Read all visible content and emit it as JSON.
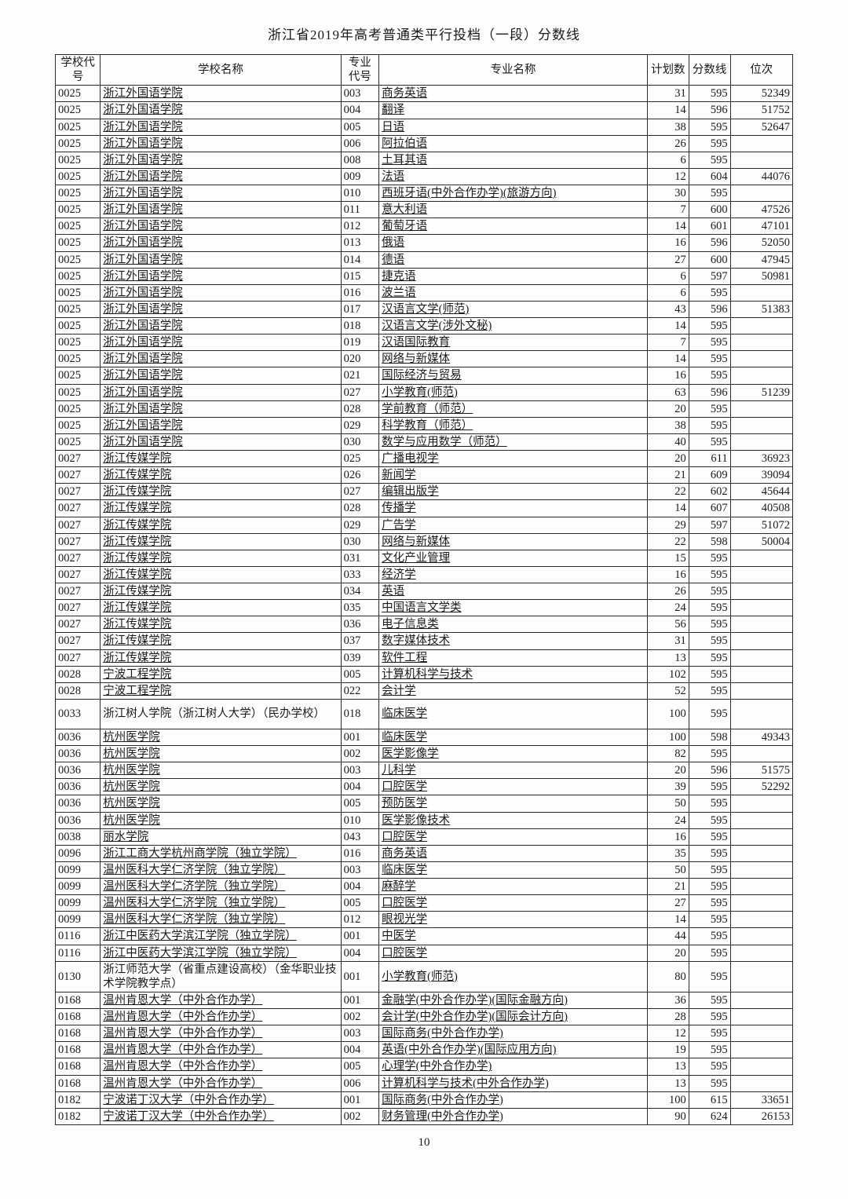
{
  "page_title": "浙江省2019年高考普通类平行投档（一段）分数线",
  "page_number": "10",
  "columns": {
    "school_code": "学校代号",
    "school_name": "学校名称",
    "major_code": "专业代号",
    "major_name": "专业名称",
    "plan": "计划数",
    "score": "分数线",
    "rank": "位次"
  },
  "rows": [
    {
      "sc": "0025",
      "sn": "浙江外国语学院",
      "ul": true,
      "mc": "003",
      "mn": "商务英语",
      "p": "31",
      "s": "595",
      "r": "52349"
    },
    {
      "sc": "0025",
      "sn": "浙江外国语学院",
      "ul": true,
      "mc": "004",
      "mn": "翻译",
      "p": "14",
      "s": "596",
      "r": "51752"
    },
    {
      "sc": "0025",
      "sn": "浙江外国语学院",
      "ul": true,
      "mc": "005",
      "mn": "日语",
      "p": "38",
      "s": "595",
      "r": "52647"
    },
    {
      "sc": "0025",
      "sn": "浙江外国语学院",
      "ul": true,
      "mc": "006",
      "mn": "阿拉伯语",
      "p": "26",
      "s": "595",
      "r": ""
    },
    {
      "sc": "0025",
      "sn": "浙江外国语学院",
      "ul": true,
      "mc": "008",
      "mn": "土耳其语",
      "p": "6",
      "s": "595",
      "r": ""
    },
    {
      "sc": "0025",
      "sn": "浙江外国语学院",
      "ul": true,
      "mc": "009",
      "mn": "法语",
      "p": "12",
      "s": "604",
      "r": "44076"
    },
    {
      "sc": "0025",
      "sn": "浙江外国语学院",
      "ul": true,
      "mc": "010",
      "mn": "西班牙语(中外合作办学)(旅游方向)",
      "p": "30",
      "s": "595",
      "r": ""
    },
    {
      "sc": "0025",
      "sn": "浙江外国语学院",
      "ul": true,
      "mc": "011",
      "mn": "意大利语",
      "p": "7",
      "s": "600",
      "r": "47526"
    },
    {
      "sc": "0025",
      "sn": "浙江外国语学院",
      "ul": true,
      "mc": "012",
      "mn": "葡萄牙语",
      "p": "14",
      "s": "601",
      "r": "47101"
    },
    {
      "sc": "0025",
      "sn": "浙江外国语学院",
      "ul": true,
      "mc": "013",
      "mn": "俄语",
      "p": "16",
      "s": "596",
      "r": "52050"
    },
    {
      "sc": "0025",
      "sn": "浙江外国语学院",
      "ul": true,
      "mc": "014",
      "mn": "德语",
      "p": "27",
      "s": "600",
      "r": "47945"
    },
    {
      "sc": "0025",
      "sn": "浙江外国语学院",
      "ul": true,
      "mc": "015",
      "mn": "捷克语",
      "p": "6",
      "s": "597",
      "r": "50981"
    },
    {
      "sc": "0025",
      "sn": "浙江外国语学院",
      "ul": true,
      "mc": "016",
      "mn": "波兰语",
      "p": "6",
      "s": "595",
      "r": ""
    },
    {
      "sc": "0025",
      "sn": "浙江外国语学院",
      "ul": true,
      "mc": "017",
      "mn": "汉语言文学(师范)",
      "p": "43",
      "s": "596",
      "r": "51383"
    },
    {
      "sc": "0025",
      "sn": "浙江外国语学院",
      "ul": true,
      "mc": "018",
      "mn": "汉语言文学(涉外文秘)",
      "p": "14",
      "s": "595",
      "r": ""
    },
    {
      "sc": "0025",
      "sn": "浙江外国语学院",
      "ul": true,
      "mc": "019",
      "mn": "汉语国际教育",
      "p": "7",
      "s": "595",
      "r": ""
    },
    {
      "sc": "0025",
      "sn": "浙江外国语学院",
      "ul": true,
      "mc": "020",
      "mn": "网络与新媒体",
      "p": "14",
      "s": "595",
      "r": ""
    },
    {
      "sc": "0025",
      "sn": "浙江外国语学院",
      "ul": true,
      "mc": "021",
      "mn": "国际经济与贸易",
      "p": "16",
      "s": "595",
      "r": ""
    },
    {
      "sc": "0025",
      "sn": "浙江外国语学院",
      "ul": true,
      "mc": "027",
      "mn": "小学教育(师范)",
      "p": "63",
      "s": "596",
      "r": "51239"
    },
    {
      "sc": "0025",
      "sn": "浙江外国语学院",
      "ul": true,
      "mc": "028",
      "mn": "学前教育（师范）",
      "p": "20",
      "s": "595",
      "r": ""
    },
    {
      "sc": "0025",
      "sn": "浙江外国语学院",
      "ul": true,
      "mc": "029",
      "mn": "科学教育（师范）",
      "p": "38",
      "s": "595",
      "r": ""
    },
    {
      "sc": "0025",
      "sn": "浙江外国语学院",
      "ul": true,
      "mc": "030",
      "mn": "数学与应用数学（师范）",
      "p": "40",
      "s": "595",
      "r": ""
    },
    {
      "sc": "0027",
      "sn": "浙江传媒学院",
      "ul": true,
      "mc": "025",
      "mn": "广播电视学",
      "p": "20",
      "s": "611",
      "r": "36923"
    },
    {
      "sc": "0027",
      "sn": "浙江传媒学院",
      "ul": true,
      "mc": "026",
      "mn": "新闻学",
      "p": "21",
      "s": "609",
      "r": "39094"
    },
    {
      "sc": "0027",
      "sn": "浙江传媒学院",
      "ul": true,
      "mc": "027",
      "mn": "编辑出版学",
      "p": "22",
      "s": "602",
      "r": "45644"
    },
    {
      "sc": "0027",
      "sn": "浙江传媒学院",
      "ul": true,
      "mc": "028",
      "mn": "传播学",
      "p": "14",
      "s": "607",
      "r": "40508"
    },
    {
      "sc": "0027",
      "sn": "浙江传媒学院",
      "ul": true,
      "mc": "029",
      "mn": "广告学",
      "p": "29",
      "s": "597",
      "r": "51072"
    },
    {
      "sc": "0027",
      "sn": "浙江传媒学院",
      "ul": true,
      "mc": "030",
      "mn": "网络与新媒体",
      "p": "22",
      "s": "598",
      "r": "50004"
    },
    {
      "sc": "0027",
      "sn": "浙江传媒学院",
      "ul": true,
      "mc": "031",
      "mn": "文化产业管理",
      "p": "15",
      "s": "595",
      "r": ""
    },
    {
      "sc": "0027",
      "sn": "浙江传媒学院",
      "ul": true,
      "mc": "033",
      "mn": "经济学",
      "p": "16",
      "s": "595",
      "r": ""
    },
    {
      "sc": "0027",
      "sn": "浙江传媒学院",
      "ul": true,
      "mc": "034",
      "mn": "英语",
      "p": "26",
      "s": "595",
      "r": ""
    },
    {
      "sc": "0027",
      "sn": "浙江传媒学院",
      "ul": true,
      "mc": "035",
      "mn": "中国语言文学类",
      "p": "24",
      "s": "595",
      "r": ""
    },
    {
      "sc": "0027",
      "sn": "浙江传媒学院",
      "ul": true,
      "mc": "036",
      "mn": "电子信息类",
      "p": "56",
      "s": "595",
      "r": ""
    },
    {
      "sc": "0027",
      "sn": "浙江传媒学院",
      "ul": true,
      "mc": "037",
      "mn": "数字媒体技术",
      "p": "31",
      "s": "595",
      "r": ""
    },
    {
      "sc": "0027",
      "sn": "浙江传媒学院",
      "ul": true,
      "mc": "039",
      "mn": "软件工程",
      "p": "13",
      "s": "595",
      "r": ""
    },
    {
      "sc": "0028",
      "sn": "宁波工程学院",
      "ul": true,
      "mc": "005",
      "mn": "计算机科学与技术",
      "p": "102",
      "s": "595",
      "r": ""
    },
    {
      "sc": "0028",
      "sn": "宁波工程学院",
      "ul": true,
      "mc": "022",
      "mn": "会计学",
      "p": "52",
      "s": "595",
      "r": ""
    },
    {
      "sc": "0033",
      "sn": "浙江树人学院（浙江树人大学）（民办学校）",
      "ul": false,
      "mc": "018",
      "mn": "临床医学",
      "p": "100",
      "s": "595",
      "r": "",
      "tall": true
    },
    {
      "sc": "0036",
      "sn": "杭州医学院",
      "ul": true,
      "mc": "001",
      "mn": "临床医学",
      "p": "100",
      "s": "598",
      "r": "49343"
    },
    {
      "sc": "0036",
      "sn": "杭州医学院",
      "ul": true,
      "mc": "002",
      "mn": "医学影像学",
      "p": "82",
      "s": "595",
      "r": ""
    },
    {
      "sc": "0036",
      "sn": "杭州医学院",
      "ul": true,
      "mc": "003",
      "mn": "儿科学",
      "p": "20",
      "s": "596",
      "r": "51575"
    },
    {
      "sc": "0036",
      "sn": "杭州医学院",
      "ul": true,
      "mc": "004",
      "mn": "口腔医学",
      "p": "39",
      "s": "595",
      "r": "52292"
    },
    {
      "sc": "0036",
      "sn": "杭州医学院",
      "ul": true,
      "mc": "005",
      "mn": "预防医学",
      "p": "50",
      "s": "595",
      "r": ""
    },
    {
      "sc": "0036",
      "sn": "杭州医学院",
      "ul": true,
      "mc": "010",
      "mn": "医学影像技术",
      "p": "24",
      "s": "595",
      "r": ""
    },
    {
      "sc": "0038",
      "sn": "丽水学院",
      "ul": true,
      "mc": "043",
      "mn": "口腔医学",
      "p": "16",
      "s": "595",
      "r": ""
    },
    {
      "sc": "0096",
      "sn": "浙江工商大学杭州商学院（独立学院）",
      "ul": true,
      "mc": "016",
      "mn": "商务英语",
      "p": "35",
      "s": "595",
      "r": ""
    },
    {
      "sc": "0099",
      "sn": "温州医科大学仁济学院（独立学院）",
      "ul": true,
      "mc": "003",
      "mn": "临床医学",
      "p": "50",
      "s": "595",
      "r": ""
    },
    {
      "sc": "0099",
      "sn": "温州医科大学仁济学院（独立学院）",
      "ul": true,
      "mc": "004",
      "mn": "麻醉学",
      "p": "21",
      "s": "595",
      "r": ""
    },
    {
      "sc": "0099",
      "sn": "温州医科大学仁济学院（独立学院）",
      "ul": true,
      "mc": "005",
      "mn": "口腔医学",
      "p": "27",
      "s": "595",
      "r": ""
    },
    {
      "sc": "0099",
      "sn": "温州医科大学仁济学院（独立学院）",
      "ul": true,
      "mc": "012",
      "mn": "眼视光学",
      "p": "14",
      "s": "595",
      "r": ""
    },
    {
      "sc": "0116",
      "sn": "浙江中医药大学滨江学院（独立学院）",
      "ul": true,
      "mc": "001",
      "mn": "中医学",
      "p": "44",
      "s": "595",
      "r": ""
    },
    {
      "sc": "0116",
      "sn": "浙江中医药大学滨江学院（独立学院）",
      "ul": true,
      "mc": "004",
      "mn": "口腔医学",
      "p": "20",
      "s": "595",
      "r": ""
    },
    {
      "sc": "0130",
      "sn": "浙江师范大学（省重点建设高校）（金华职业技术学院教学点）",
      "ul": false,
      "mc": "001",
      "mn": "小学教育(师范)",
      "p": "80",
      "s": "595",
      "r": "",
      "tall": true
    },
    {
      "sc": "0168",
      "sn": "温州肯恩大学（中外合作办学）",
      "ul": true,
      "mc": "001",
      "mn": "金融学(中外合作办学)(国际金融方向)",
      "p": "36",
      "s": "595",
      "r": ""
    },
    {
      "sc": "0168",
      "sn": "温州肯恩大学（中外合作办学）",
      "ul": true,
      "mc": "002",
      "mn": "会计学(中外合作办学)(国际会计方向)",
      "p": "28",
      "s": "595",
      "r": ""
    },
    {
      "sc": "0168",
      "sn": "温州肯恩大学（中外合作办学）",
      "ul": true,
      "mc": "003",
      "mn": "国际商务(中外合作办学)",
      "p": "12",
      "s": "595",
      "r": ""
    },
    {
      "sc": "0168",
      "sn": "温州肯恩大学（中外合作办学）",
      "ul": true,
      "mc": "004",
      "mn": "英语(中外合作办学)(国际应用方向)",
      "p": "19",
      "s": "595",
      "r": ""
    },
    {
      "sc": "0168",
      "sn": "温州肯恩大学（中外合作办学）",
      "ul": true,
      "mc": "005",
      "mn": "心理学(中外合作办学)",
      "p": "13",
      "s": "595",
      "r": ""
    },
    {
      "sc": "0168",
      "sn": "温州肯恩大学（中外合作办学）",
      "ul": true,
      "mc": "006",
      "mn": "计算机科学与技术(中外合作办学)",
      "p": "13",
      "s": "595",
      "r": ""
    },
    {
      "sc": "0182",
      "sn": "宁波诺丁汉大学（中外合作办学）",
      "ul": true,
      "mc": "001",
      "mn": "国际商务(中外合作办学)",
      "p": "100",
      "s": "615",
      "r": "33651"
    },
    {
      "sc": "0182",
      "sn": "宁波诺丁汉大学（中外合作办学）",
      "ul": true,
      "mc": "002",
      "mn": "财务管理(中外合作办学)",
      "p": "90",
      "s": "624",
      "r": "26153"
    }
  ]
}
